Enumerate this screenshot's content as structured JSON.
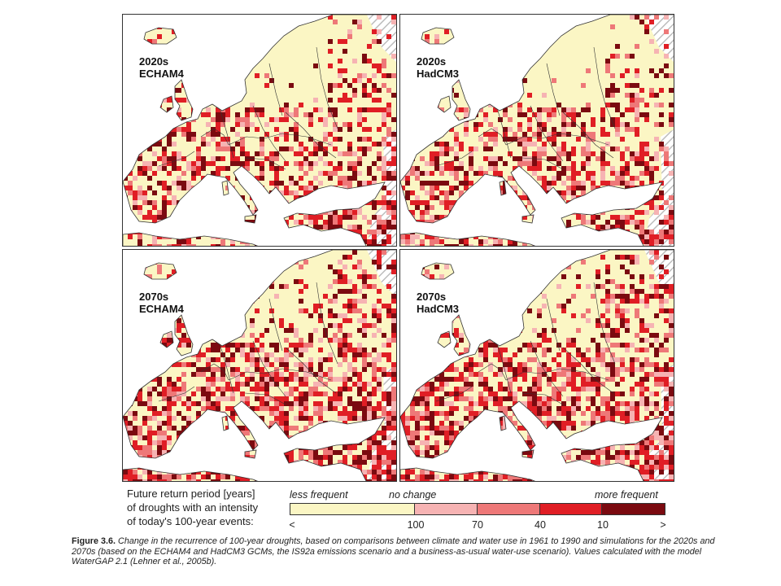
{
  "panels": [
    {
      "period": "2020s",
      "model": "ECHAM4"
    },
    {
      "period": "2020s",
      "model": "HadCM3"
    },
    {
      "period": "2070s",
      "model": "ECHAM4"
    },
    {
      "period": "2070s",
      "model": "HadCM3"
    }
  ],
  "colors": {
    "land": "#fbf6c4",
    "sea": "#ffffff",
    "border": "#333333",
    "nodata_hatch": "#bdbdbd",
    "classes": [
      "#fbf6c4",
      "#f6b3b3",
      "#ee7878",
      "#e01e25",
      "#7b0a10"
    ]
  },
  "legend": {
    "title_lines": [
      "Future return period [years]",
      "of droughts with an intensity",
      "of today's 100-year events:"
    ],
    "less_frequent": "less frequent",
    "no_change": "no change",
    "more_frequent": "more frequent",
    "ticks": [
      "<",
      "100",
      "70",
      "40",
      "10",
      ">"
    ]
  },
  "caption": {
    "figure": "Figure 3.6.",
    "text": "Change in the recurrence of 100-year droughts, based on comparisons between climate and water use in 1961 to 1990 and simulations for the 2020s and 2070s (based on the ECHAM4 and HadCM3 GCMs, the IS92a emissions scenario and a business-as-usual water-use scenario). Values calculated with the model WaterGAP 2.1 (Lehner et al., 2005b)."
  }
}
